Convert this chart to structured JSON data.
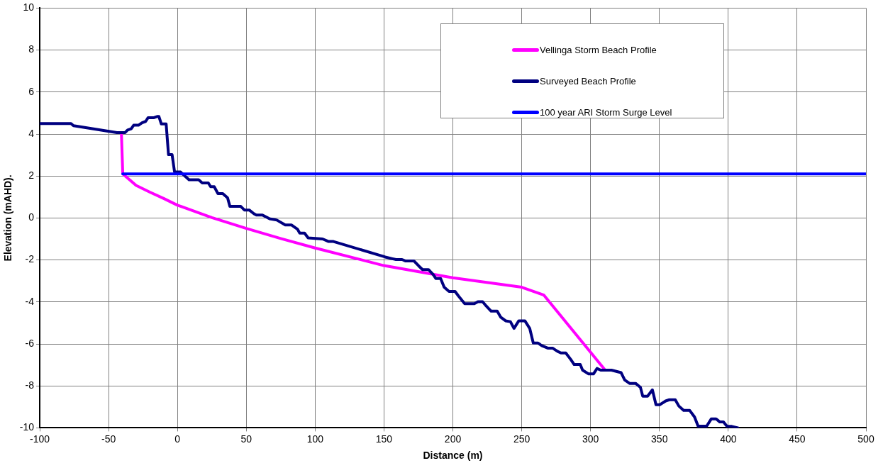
{
  "chart_data": {
    "type": "line",
    "xlabel": "Distance (m)",
    "ylabel": "Elevation (mAHD).",
    "xlim": [
      -100,
      500
    ],
    "xticks": [
      -100,
      -50,
      0,
      50,
      100,
      150,
      200,
      250,
      300,
      350,
      400,
      450,
      500
    ],
    "ylim": [
      -10,
      10
    ],
    "yticks": [
      -10,
      -8,
      -6,
      -4,
      -2,
      0,
      2,
      4,
      6,
      8,
      10
    ],
    "grid": true,
    "legend": "top right",
    "marker": "none",
    "line_style": "solid",
    "series": [
      {
        "name": "Vellinga Storm Beach Profile",
        "color": "#ff00ff",
        "x": [
          -40.7,
          -39.7,
          -30,
          -20,
          -10,
          0,
          25,
          50,
          75,
          100,
          150,
          200,
          250,
          266,
          310
        ],
        "values": [
          4.05,
          2.1,
          1.55,
          1.23,
          0.93,
          0.61,
          0.02,
          -0.5,
          -0.98,
          -1.43,
          -2.27,
          -2.85,
          -3.3,
          -3.67,
          -7.2
        ]
      },
      {
        "name": "Surveyed Beach Profile",
        "color": "#000080",
        "x": [
          -100,
          -77.3,
          -75.5,
          -44,
          -38,
          -36.2,
          -33.6,
          -31.8,
          -28.3,
          -25.7,
          -23.1,
          -21.3,
          -17,
          -14.4,
          -13.5,
          -11.7,
          -8.2,
          -6.5,
          -3.9,
          -2.1,
          2.3,
          4,
          8.4,
          15.4,
          18,
          22.4,
          24.1,
          26.7,
          29.4,
          32.9,
          36.4,
          38.1,
          46,
          48.6,
          52.1,
          55.6,
          57.3,
          61.7,
          66.9,
          72.2,
          78.3,
          82.7,
          87.1,
          88.8,
          92.3,
          94.9,
          105.4,
          109.8,
          113.3,
          150.9,
          156.1,
          158.7,
          163.1,
          165.7,
          171.8,
          175.3,
          178,
          182.3,
          185.8,
          187.6,
          191.1,
          193.7,
          197.2,
          201.6,
          204.2,
          208.6,
          215.6,
          218.2,
          221.6,
          224.3,
          227.8,
          232.2,
          234.8,
          238.3,
          241.8,
          244.4,
          247.9,
          252.3,
          255.8,
          258.4,
          261.9,
          264.5,
          268.9,
          272.4,
          275.9,
          278.5,
          282,
          285.5,
          288.1,
          292.5,
          294.2,
          298.6,
          302.1,
          304.7,
          307.4,
          315.2,
          322.2,
          324.8,
          328.3,
          332.7,
          336.2,
          337.9,
          341.4,
          344.9,
          347.5,
          350.2,
          354.5,
          357.2,
          361.5,
          364.1,
          367.6,
          372,
          375.5,
          378.1,
          384.3,
          387.7,
          391.2,
          393.9,
          396.5,
          399.1,
          402.6,
          407
        ],
        "values": [
          4.5,
          4.5,
          4.4,
          4.07,
          4.07,
          4.19,
          4.25,
          4.42,
          4.42,
          4.54,
          4.6,
          4.78,
          4.78,
          4.84,
          4.84,
          4.48,
          4.48,
          3.02,
          3.02,
          2.19,
          2.19,
          2.08,
          1.82,
          1.82,
          1.67,
          1.67,
          1.49,
          1.49,
          1.16,
          1.16,
          0.96,
          0.55,
          0.55,
          0.38,
          0.38,
          0.2,
          0.14,
          0.14,
          -0.04,
          -0.1,
          -0.33,
          -0.33,
          -0.53,
          -0.72,
          -0.72,
          -0.95,
          -1.0,
          -1.12,
          -1.12,
          -1.86,
          -1.94,
          -1.98,
          -1.98,
          -2.05,
          -2.05,
          -2.29,
          -2.46,
          -2.46,
          -2.7,
          -2.88,
          -2.88,
          -3.3,
          -3.5,
          -3.5,
          -3.73,
          -4.08,
          -4.08,
          -3.99,
          -3.99,
          -4.2,
          -4.44,
          -4.44,
          -4.73,
          -4.9,
          -4.94,
          -5.26,
          -4.9,
          -4.9,
          -5.26,
          -5.96,
          -5.96,
          -6.08,
          -6.2,
          -6.2,
          -6.35,
          -6.43,
          -6.43,
          -6.73,
          -6.98,
          -6.98,
          -7.25,
          -7.43,
          -7.43,
          -7.17,
          -7.25,
          -7.25,
          -7.37,
          -7.72,
          -7.88,
          -7.88,
          -8.07,
          -8.49,
          -8.49,
          -8.19,
          -8.9,
          -8.9,
          -8.72,
          -8.66,
          -8.66,
          -8.96,
          -9.17,
          -9.17,
          -9.48,
          -9.92,
          -9.92,
          -9.57,
          -9.57,
          -9.72,
          -9.72,
          -9.93,
          -9.93,
          -10
        ]
      },
      {
        "name": "100 year ARI Storm Surge Level",
        "color": "#0000ff",
        "x": [
          -39.7,
          500
        ],
        "values": [
          2.1,
          2.1
        ]
      }
    ]
  }
}
